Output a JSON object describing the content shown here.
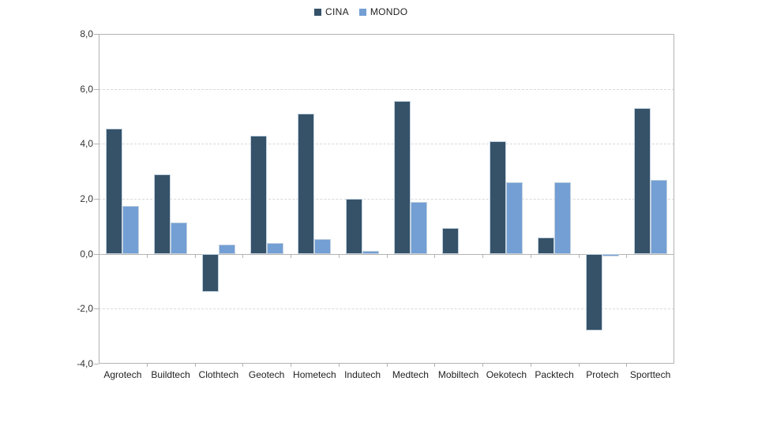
{
  "chart_data": {
    "type": "bar",
    "title": "",
    "xlabel": "",
    "ylabel": "",
    "categories": [
      "Agrotech",
      "Buildtech",
      "Clothtech",
      "Geotech",
      "Hometech",
      "Indutech",
      "Medtech",
      "Mobiltech",
      "Oekotech",
      "Packtech",
      "Protech",
      "Sporttech"
    ],
    "series": [
      {
        "name": "CINA",
        "color": "#355269",
        "values": [
          4.55,
          2.9,
          -1.4,
          4.3,
          5.1,
          2.0,
          5.55,
          0.95,
          4.1,
          0.6,
          -2.8,
          5.3
        ]
      },
      {
        "name": "MONDO",
        "color": "#739fd4",
        "values": [
          1.75,
          1.15,
          0.35,
          0.4,
          0.55,
          0.1,
          1.9,
          0.0,
          2.6,
          2.6,
          -0.1,
          2.7
        ]
      }
    ],
    "ylim": [
      -4,
      8
    ],
    "ytick_values": [
      8,
      6,
      4,
      2,
      0,
      -2,
      -4
    ],
    "ytick_labels": [
      "8,0",
      "6,0",
      "4,0",
      "2,0",
      "0,0",
      "-2,0",
      "-4,0"
    ],
    "grid": "horizontal-dashed",
    "legend_position": "top-center",
    "decimal_format": "comma"
  },
  "colors": {
    "cina": "#355269",
    "mondo": "#739fd4",
    "axis": "#b3b3b3",
    "gridline": "#d9d9d9",
    "text": "#1f1f1f"
  }
}
